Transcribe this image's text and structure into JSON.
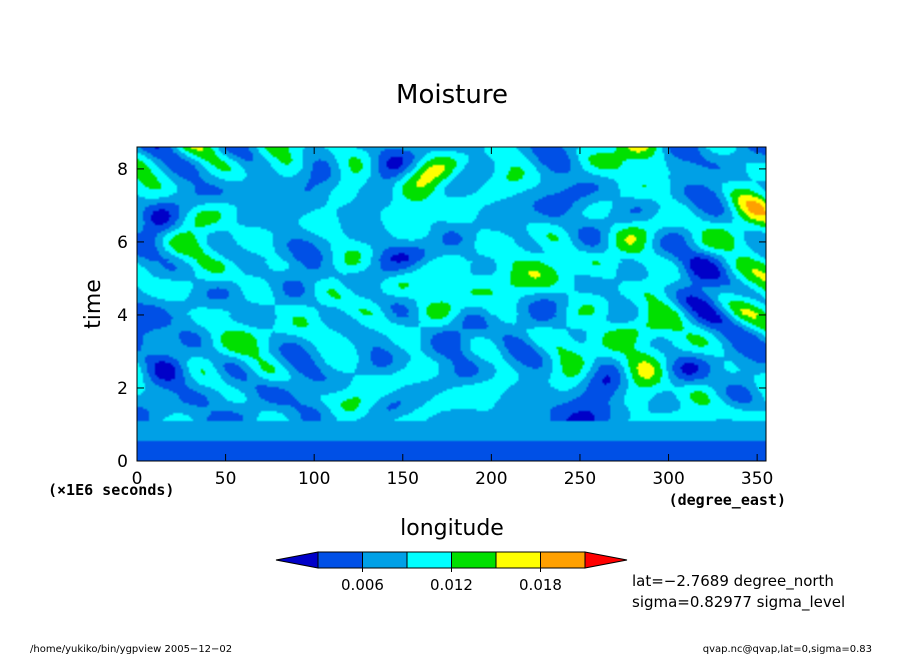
{
  "chart_data": {
    "type": "heatmap",
    "title": "Moisture",
    "xlabel": "longitude",
    "ylabel": "time",
    "x_units": "(degree_east)",
    "y_units": "(×1E6 seconds)",
    "xlim": [
      0,
      355
    ],
    "ylim": [
      0,
      8.6
    ],
    "x_ticks": [
      0,
      50,
      100,
      150,
      200,
      250,
      300,
      350
    ],
    "y_ticks": [
      0,
      2,
      4,
      6,
      8
    ],
    "color_levels": [
      0.003,
      0.006,
      0.009,
      0.012,
      0.015,
      0.018,
      0.021
    ],
    "colorbar_tick_labels": [
      "0.006",
      "0.012",
      "0.018"
    ],
    "colors": [
      "#0000c8",
      "#0050e6",
      "#00a0e6",
      "#00ffff",
      "#00e000",
      "#ffff00",
      "#ffa000",
      "#ff0000"
    ],
    "grid": false
  },
  "annotations": {
    "lat": "lat=−2.7689 degree_north",
    "sigma": "sigma=0.82977 sigma_level",
    "footer_left": "/home/yukiko/bin/ygpview  2005−12−02",
    "footer_right": "qvap.nc@qvap,lat=0,sigma=0.83"
  }
}
